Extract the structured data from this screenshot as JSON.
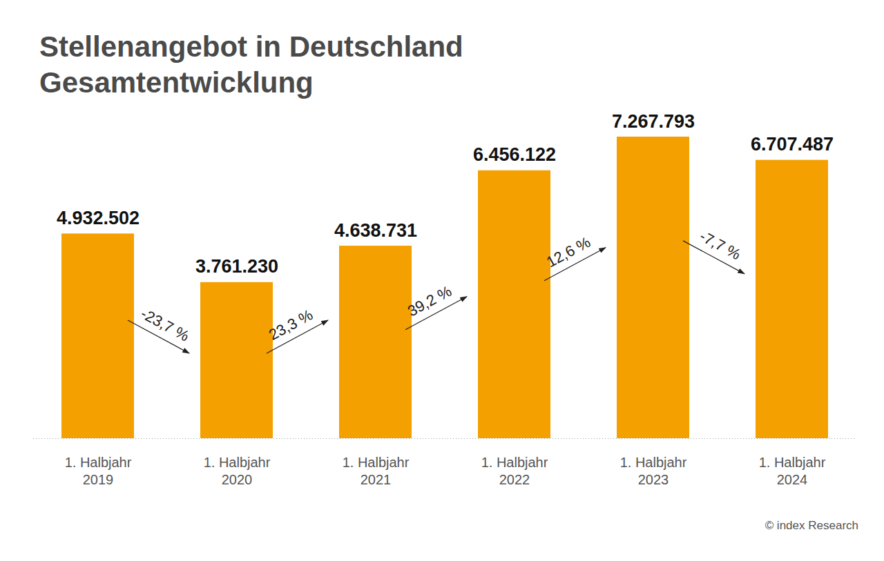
{
  "chart_data": {
    "type": "bar",
    "title": "Stellenangebot in Deutschland",
    "subtitle": "Gesamtentwicklung",
    "categories": [
      "1. Halbjahr 2019",
      "1. Halbjahr 2020",
      "1. Halbjahr 2021",
      "1. Halbjahr 2022",
      "1. Halbjahr 2023",
      "1. Halbjahr 2024"
    ],
    "values": [
      4932502,
      3761230,
      4638731,
      6456122,
      7267793,
      6707487
    ],
    "value_labels": [
      "4.932.502",
      "3.761.230",
      "4.638.731",
      "6.456.122",
      "7.267.793",
      "6.707.487"
    ],
    "color": "#f4a000",
    "ylim": [
      0,
      7267793
    ],
    "data_labels": true,
    "grid": false,
    "tick_labels": "x",
    "annotations": [
      "-23,7 %",
      "23,3 %",
      "39,2 %",
      "12,6 %",
      "-7,7 %"
    ],
    "source": "© index Research"
  }
}
